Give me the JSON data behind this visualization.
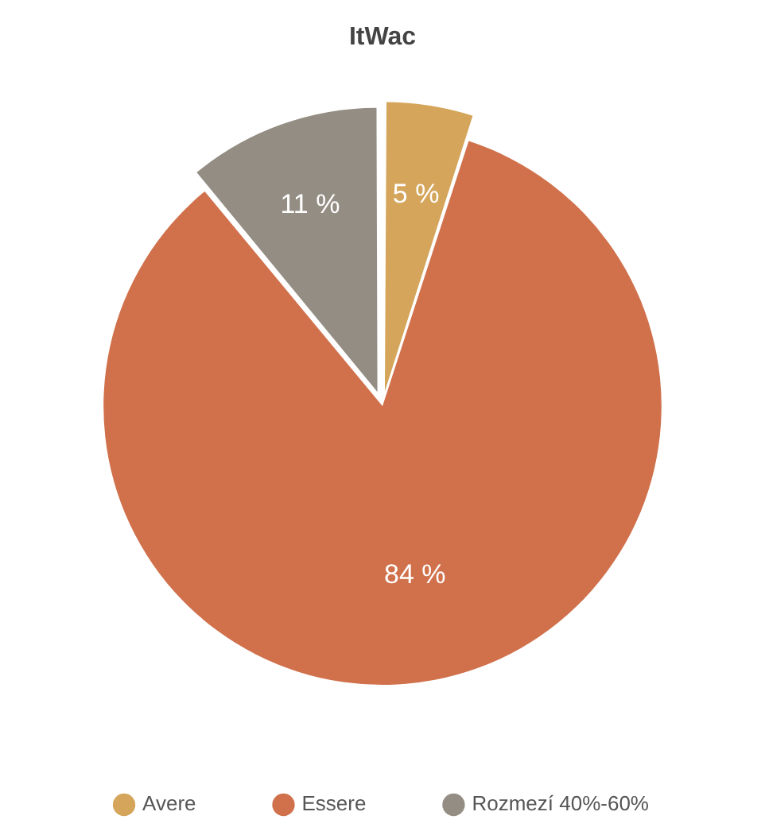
{
  "chart_data": {
    "type": "pie",
    "title": "ItWac",
    "categories": [
      "Avere",
      "Essere",
      "Rozmezí 40%-60%"
    ],
    "values": [
      5,
      84,
      11
    ],
    "colors": [
      "#d4a55a",
      "#d0714c",
      "#948d83"
    ],
    "value_labels": [
      "5 %",
      "84 %",
      "11 %"
    ],
    "legend": "bottom"
  }
}
